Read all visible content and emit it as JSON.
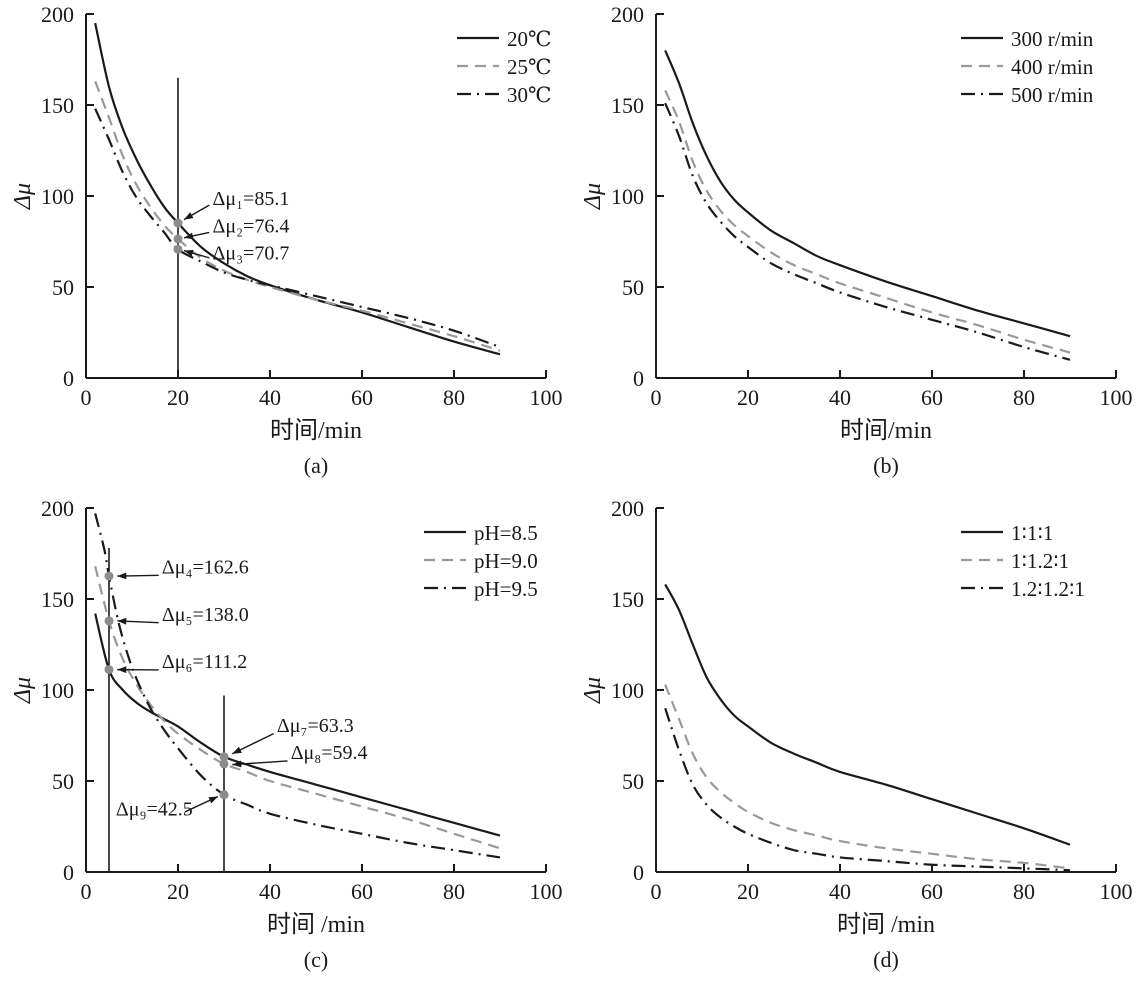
{
  "figure": {
    "background": "#ffffff",
    "panel_captions": [
      "(a)",
      "(b)",
      "(c)",
      "(d)"
    ]
  },
  "colors": {
    "axis": "#1a1a1a",
    "black_series": "#1a1a1a",
    "gray_series": "#999999",
    "marker_dot": "#8c8c8c"
  },
  "chart_data": [
    {
      "id": "a",
      "type": "line",
      "caption": "(a)",
      "xlabel": "时间/min",
      "ylabel": "Δμ",
      "xlim": [
        0,
        100
      ],
      "ylim": [
        0,
        200
      ],
      "xticks": [
        0,
        20,
        40,
        60,
        80,
        100
      ],
      "yticks": [
        0,
        50,
        100,
        150,
        200
      ],
      "legend_position": "top-right",
      "grid": false,
      "legend": [
        {
          "label": "20℃",
          "style": "solid",
          "color": "#1a1a1a"
        },
        {
          "label": "25℃",
          "style": "dashed",
          "color": "#999999"
        },
        {
          "label": "30℃",
          "style": "dashdot",
          "color": "#1a1a1a"
        }
      ],
      "series": [
        {
          "name": "20℃",
          "style": "solid",
          "color": "#1a1a1a",
          "x": [
            2,
            5,
            8,
            11,
            14,
            17,
            20,
            25,
            30,
            35,
            40,
            50,
            60,
            70,
            80,
            90
          ],
          "y": [
            195,
            160,
            137,
            120,
            106,
            94,
            85.1,
            72,
            63,
            56,
            51,
            43,
            36,
            28,
            20,
            13
          ]
        },
        {
          "name": "25℃",
          "style": "dashed",
          "color": "#999999",
          "x": [
            2,
            5,
            8,
            11,
            14,
            17,
            20,
            25,
            30,
            35,
            40,
            50,
            60,
            70,
            80,
            90
          ],
          "y": [
            163,
            143,
            122,
            106,
            94,
            84,
            76.4,
            66,
            59,
            54,
            50,
            43,
            37,
            30,
            23,
            15
          ]
        },
        {
          "name": "30℃",
          "style": "dashdot",
          "color": "#1a1a1a",
          "x": [
            2,
            5,
            8,
            11,
            14,
            17,
            20,
            25,
            30,
            35,
            40,
            50,
            60,
            70,
            80,
            90
          ],
          "y": [
            148,
            131,
            113,
            99,
            89,
            80,
            70.7,
            64,
            58,
            54,
            51,
            45,
            39,
            33,
            26,
            17
          ]
        }
      ],
      "vlines": [
        {
          "x": 20,
          "y0": 0,
          "y1": 165
        }
      ],
      "markers": [
        {
          "x": 20,
          "y": 85.1
        },
        {
          "x": 20,
          "y": 76.4
        },
        {
          "x": 20,
          "y": 70.7
        }
      ],
      "annotations": [
        {
          "text": "Δμ₁=85.1",
          "label_x": 27.5,
          "label_y": 95,
          "arrow_from": [
            26.8,
            95
          ],
          "arrow_to": [
            21.3,
            87
          ]
        },
        {
          "text": "Δμ₂=76.4",
          "label_x": 27.5,
          "label_y": 80,
          "arrow_from": [
            26.8,
            80
          ],
          "arrow_to": [
            21.3,
            77
          ]
        },
        {
          "text": "Δμ₃=70.7",
          "label_x": 27.5,
          "label_y": 65,
          "arrow_from": [
            26.8,
            66
          ],
          "arrow_to": [
            21.3,
            70
          ]
        }
      ]
    },
    {
      "id": "b",
      "type": "line",
      "caption": "(b)",
      "xlabel": "时间/min",
      "ylabel": "Δμ",
      "xlim": [
        0,
        100
      ],
      "ylim": [
        0,
        200
      ],
      "xticks": [
        0,
        20,
        40,
        60,
        80,
        100
      ],
      "yticks": [
        0,
        50,
        100,
        150,
        200
      ],
      "legend_position": "top-right",
      "grid": false,
      "legend": [
        {
          "label": "300 r/min",
          "style": "solid",
          "color": "#1a1a1a"
        },
        {
          "label": "400 r/min",
          "style": "dashed",
          "color": "#999999"
        },
        {
          "label": "500 r/min",
          "style": "dashdot",
          "color": "#1a1a1a"
        }
      ],
      "series": [
        {
          "name": "300 r/min",
          "style": "solid",
          "color": "#1a1a1a",
          "x": [
            2,
            5,
            8,
            11,
            14,
            17,
            20,
            25,
            30,
            35,
            40,
            50,
            60,
            70,
            80,
            90
          ],
          "y": [
            180,
            162,
            140,
            122,
            108,
            98,
            91,
            81,
            74,
            67,
            62,
            53,
            45,
            37,
            30,
            23
          ]
        },
        {
          "name": "400 r/min",
          "style": "dashed",
          "color": "#999999",
          "x": [
            2,
            5,
            8,
            11,
            14,
            17,
            20,
            25,
            30,
            35,
            40,
            50,
            60,
            70,
            80,
            90
          ],
          "y": [
            158,
            141,
            119,
            103,
            92,
            84,
            78,
            69,
            62,
            57,
            52,
            44,
            36,
            29,
            21,
            14
          ]
        },
        {
          "name": "500 r/min",
          "style": "dashdot",
          "color": "#1a1a1a",
          "x": [
            2,
            5,
            8,
            11,
            14,
            17,
            20,
            25,
            30,
            35,
            40,
            50,
            60,
            70,
            80,
            90
          ],
          "y": [
            151,
            133,
            111,
            96,
            86,
            78,
            72,
            63,
            57,
            52,
            47,
            39,
            32,
            25,
            17,
            10
          ]
        }
      ],
      "vlines": [],
      "markers": [],
      "annotations": []
    },
    {
      "id": "c",
      "type": "line",
      "caption": "(c)",
      "xlabel": "时间 /min",
      "ylabel": "Δμ",
      "xlim": [
        0,
        100
      ],
      "ylim": [
        0,
        200
      ],
      "xticks": [
        0,
        20,
        40,
        60,
        80,
        100
      ],
      "yticks": [
        0,
        50,
        100,
        150,
        200
      ],
      "legend_position": "top-right",
      "grid": false,
      "legend": [
        {
          "label": "pH=8.5",
          "style": "solid",
          "color": "#1a1a1a"
        },
        {
          "label": "pH=9.0",
          "style": "dashed",
          "color": "#999999"
        },
        {
          "label": "pH=9.5",
          "style": "dashdot",
          "color": "#1a1a1a"
        }
      ],
      "series": [
        {
          "name": "pH=8.5",
          "style": "solid",
          "color": "#1a1a1a",
          "x": [
            2,
            5,
            8,
            11,
            14,
            17,
            20,
            25,
            30,
            35,
            40,
            50,
            60,
            70,
            80,
            90
          ],
          "y": [
            142,
            111.2,
            100,
            93,
            88,
            84,
            80,
            71,
            63.3,
            59,
            55,
            48,
            41,
            34,
            27,
            20
          ]
        },
        {
          "name": "pH=9.0",
          "style": "dashed",
          "color": "#999999",
          "x": [
            2,
            5,
            8,
            11,
            14,
            17,
            20,
            25,
            30,
            35,
            40,
            50,
            60,
            70,
            80,
            90
          ],
          "y": [
            168,
            138,
            117,
            103,
            92,
            83,
            76,
            67,
            59.4,
            55,
            50,
            43,
            36,
            29,
            21,
            13
          ]
        },
        {
          "name": "pH=9.5",
          "style": "dashdot",
          "color": "#1a1a1a",
          "x": [
            2,
            4,
            5,
            7,
            9,
            11,
            14,
            17,
            20,
            25,
            30,
            35,
            40,
            50,
            60,
            70,
            80,
            90
          ],
          "y": [
            197,
            177,
            162.6,
            138,
            120,
            106,
            90,
            78,
            68,
            53,
            42.5,
            37,
            32,
            26,
            21,
            16,
            12,
            8
          ]
        }
      ],
      "vlines": [
        {
          "x": 5,
          "y0": 0,
          "y1": 178
        },
        {
          "x": 30,
          "y0": 0,
          "y1": 97
        }
      ],
      "markers": [
        {
          "x": 5,
          "y": 162.6
        },
        {
          "x": 5,
          "y": 138
        },
        {
          "x": 5,
          "y": 111.2
        },
        {
          "x": 30,
          "y": 63.3
        },
        {
          "x": 30,
          "y": 59.4
        },
        {
          "x": 30,
          "y": 42.5
        }
      ],
      "annotations": [
        {
          "text": "Δμ₄=162.6",
          "label_x": 16.5,
          "label_y": 164,
          "arrow_from": [
            15.8,
            163
          ],
          "arrow_to": [
            6.8,
            162.6
          ]
        },
        {
          "text": "Δμ₅=138.0",
          "label_x": 16.5,
          "label_y": 138,
          "arrow_from": [
            15.8,
            137
          ],
          "arrow_to": [
            6.8,
            138
          ]
        },
        {
          "text": "Δμ₆=111.2",
          "label_x": 16.5,
          "label_y": 112,
          "arrow_from": [
            15.8,
            111
          ],
          "arrow_to": [
            6.8,
            111.2
          ]
        },
        {
          "text": "Δμ₇=63.3",
          "label_x": 41.5,
          "label_y": 77,
          "arrow_from": [
            40.8,
            76
          ],
          "arrow_to": [
            31.8,
            65
          ]
        },
        {
          "text": "Δμ₈=59.4",
          "label_x": 44.5,
          "label_y": 62,
          "arrow_from": [
            43.8,
            61
          ],
          "arrow_to": [
            31.8,
            59
          ]
        },
        {
          "text": "Δμ₉=42.5",
          "label_x": 6.5,
          "label_y": 31,
          "arrow_from": [
            21.5,
            33
          ],
          "arrow_to": [
            28.7,
            41.5
          ]
        }
      ]
    },
    {
      "id": "d",
      "type": "line",
      "caption": "(d)",
      "xlabel": "时间 /min",
      "ylabel": "Δμ",
      "xlim": [
        0,
        100
      ],
      "ylim": [
        0,
        200
      ],
      "xticks": [
        0,
        20,
        40,
        60,
        80,
        100
      ],
      "yticks": [
        0,
        50,
        100,
        150,
        200
      ],
      "legend_position": "top-right",
      "grid": false,
      "legend": [
        {
          "label": "1∶1∶1",
          "style": "solid",
          "color": "#1a1a1a"
        },
        {
          "label": "1∶1.2∶1",
          "style": "dashed",
          "color": "#999999"
        },
        {
          "label": "1.2∶1.2∶1",
          "style": "dashdot",
          "color": "#1a1a1a"
        }
      ],
      "series": [
        {
          "name": "1∶1∶1",
          "style": "solid",
          "color": "#1a1a1a",
          "x": [
            2,
            5,
            8,
            11,
            14,
            17,
            20,
            25,
            30,
            35,
            40,
            50,
            60,
            70,
            80,
            90
          ],
          "y": [
            158,
            144,
            125,
            107,
            95,
            86,
            80,
            71,
            65,
            60,
            55,
            48,
            40,
            32,
            24,
            15
          ]
        },
        {
          "name": "1∶1.2∶1",
          "style": "dashed",
          "color": "#999999",
          "x": [
            2,
            5,
            8,
            11,
            14,
            17,
            20,
            25,
            30,
            35,
            40,
            50,
            60,
            70,
            80,
            90
          ],
          "y": [
            103,
            84,
            65,
            52,
            44,
            38,
            33,
            27,
            23,
            20,
            17,
            13,
            10,
            7,
            5,
            2
          ]
        },
        {
          "name": "1.2∶1.2∶1",
          "style": "dashdot",
          "color": "#1a1a1a",
          "x": [
            2,
            5,
            8,
            11,
            14,
            17,
            20,
            25,
            30,
            35,
            40,
            50,
            60,
            70,
            80,
            90
          ],
          "y": [
            90,
            67,
            48,
            37,
            30,
            25,
            21,
            16,
            12,
            10,
            8,
            6,
            4,
            3,
            2,
            1
          ]
        }
      ],
      "vlines": [],
      "markers": [],
      "annotations": []
    }
  ]
}
